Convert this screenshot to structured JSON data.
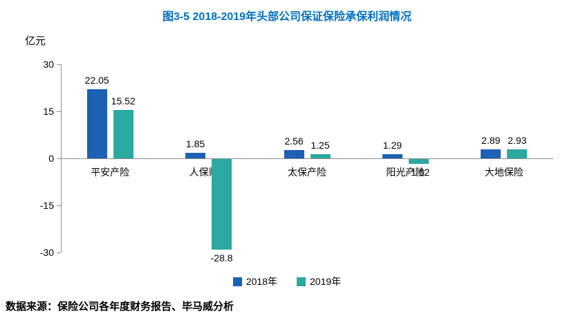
{
  "title": "图3-5 2018-2019年头部公司保证保险承保利润情况",
  "unit_label": "亿元",
  "source": "数据来源：保险公司各年度财务报告、毕马威分析",
  "colors": {
    "title": "#0070C0",
    "axis": "#8C8C8C",
    "series_2018": "#1C61B4",
    "series_2019": "#2BA8A0"
  },
  "chart_data": {
    "type": "bar",
    "categories": [
      "平安产险",
      "人保财险",
      "太保产险",
      "阳光产险",
      "大地保险"
    ],
    "series": [
      {
        "name": "2018年",
        "color": "#1C61B4",
        "values": [
          22.05,
          1.85,
          2.56,
          1.29,
          2.89
        ]
      },
      {
        "name": "2019年",
        "color": "#2BA8A0",
        "values": [
          15.52,
          -28.8,
          1.25,
          -1.62,
          2.93
        ]
      }
    ],
    "value_labels": [
      [
        "22.05",
        "1.85",
        "2.56",
        "1.29",
        "2.89"
      ],
      [
        "15.52",
        "-28.8",
        "1.25",
        "-1.62",
        "2.93"
      ]
    ],
    "ylabel": "亿元",
    "ylim": [
      -30,
      30
    ],
    "yticks": [
      30,
      15,
      0,
      -15,
      -30
    ],
    "grid": false,
    "legend_position": "bottom"
  }
}
